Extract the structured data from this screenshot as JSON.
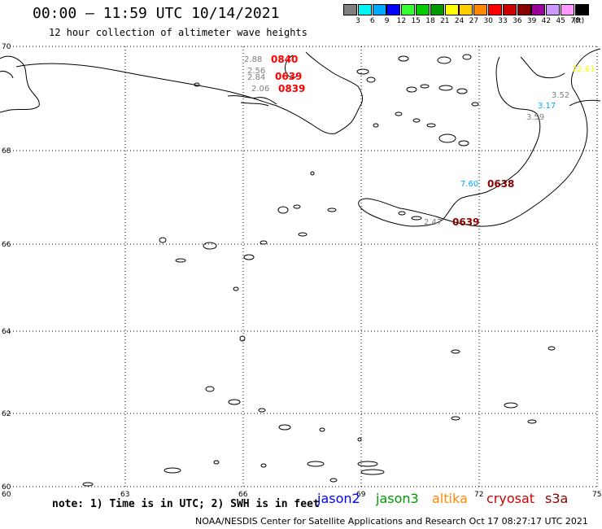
{
  "header": {
    "title": "00:00 – 11:59 UTC 10/14/2021",
    "subtitle": "12 hour collection of altimeter wave heights"
  },
  "legend": {
    "unit": "(ft)",
    "items": [
      {
        "label": "3",
        "color": "#7f7f7f"
      },
      {
        "label": "6",
        "color": "#00f5f5"
      },
      {
        "label": "9",
        "color": "#00a8ff"
      },
      {
        "label": "12",
        "color": "#0000ff"
      },
      {
        "label": "15",
        "color": "#33ff33"
      },
      {
        "label": "18",
        "color": "#00cc00"
      },
      {
        "label": "21",
        "color": "#009900"
      },
      {
        "label": "24",
        "color": "#ffff00"
      },
      {
        "label": "27",
        "color": "#ffcc00"
      },
      {
        "label": "30",
        "color": "#ff8800"
      },
      {
        "label": "33",
        "color": "#ff0000"
      },
      {
        "label": "36",
        "color": "#cc0000"
      },
      {
        "label": "39",
        "color": "#880000"
      },
      {
        "label": "42",
        "color": "#990099"
      },
      {
        "label": "45",
        "color": "#cc99ff"
      },
      {
        "label": "70",
        "color": "#ff99ff"
      },
      {
        "label": "",
        "color": "#000000"
      }
    ]
  },
  "map": {
    "lat_ticks": [
      "70",
      "68",
      "66",
      "64",
      "62",
      "60"
    ],
    "lon_ticks": [
      "63",
      "66",
      "69",
      "72",
      "75"
    ],
    "corner_label": "60",
    "observations": [
      {
        "text": "2.88",
        "color": "#7f7f7f"
      },
      {
        "text": "2.56",
        "color": "#7f7f7f"
      },
      {
        "text": "2.84",
        "color": "#7f7f7f"
      },
      {
        "text": "2.06",
        "color": "#7f7f7f"
      },
      {
        "text": "22.61",
        "color": "#ffff00"
      },
      {
        "text": "3.52",
        "color": "#7f7f7f"
      },
      {
        "text": "3.17",
        "color": "#00a8ff"
      },
      {
        "text": "3.59",
        "color": "#7f7f7f"
      },
      {
        "text": "7.60",
        "color": "#00a8ff"
      },
      {
        "text": "2.47",
        "color": "#7f7f7f"
      }
    ],
    "time_labels": [
      {
        "text": "0840",
        "color": "#ff0000"
      },
      {
        "text": "0639",
        "color": "#ff0000"
      },
      {
        "text": "0839",
        "color": "#ff0000"
      },
      {
        "text": "0638",
        "color": "#880000"
      },
      {
        "text": "0639",
        "color": "#880000"
      }
    ]
  },
  "footer": {
    "note": "note: 1) Time is in UTC; 2) SWH is in feet",
    "missions": [
      {
        "label": "jason2",
        "color": "#0000ff"
      },
      {
        "label": "jason3",
        "color": "#009900"
      },
      {
        "label": "altika",
        "color": "#ff8800"
      },
      {
        "label": "cryosat",
        "color": "#cc0000"
      },
      {
        "label": "s3a",
        "color": "#880000"
      }
    ],
    "credit": "NOAA/NESDIS Center for Satellite Applications and Research    Oct 17 08:27:17 UTC 2021"
  }
}
